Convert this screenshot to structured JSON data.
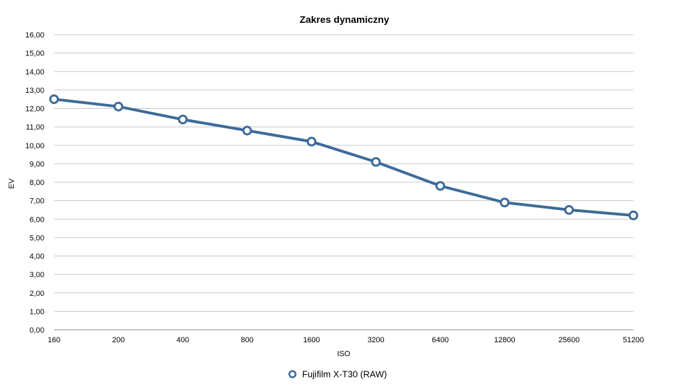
{
  "chart_data": {
    "type": "line",
    "title": "Zakres dynamiczny",
    "xlabel": "ISO",
    "ylabel": "EV",
    "categories": [
      "160",
      "200",
      "400",
      "800",
      "1600",
      "3200",
      "6400",
      "12800",
      "25600",
      "51200"
    ],
    "series": [
      {
        "name": "Fujifilm X-T30 (RAW)",
        "values": [
          12.5,
          12.1,
          11.4,
          10.8,
          10.2,
          9.1,
          7.8,
          6.9,
          6.5,
          6.2
        ]
      }
    ],
    "ylim": [
      0,
      16
    ],
    "y_ticks": [
      "0,00",
      "1,00",
      "2,00",
      "3,00",
      "4,00",
      "5,00",
      "6,00",
      "7,00",
      "8,00",
      "9,00",
      "10,00",
      "11,00",
      "12,00",
      "13,00",
      "14,00",
      "15,00",
      "16,00"
    ],
    "grid": true,
    "legend_position": "bottom",
    "colors": {
      "series": "#3d6b99",
      "grid": "#c8c8c8"
    }
  }
}
